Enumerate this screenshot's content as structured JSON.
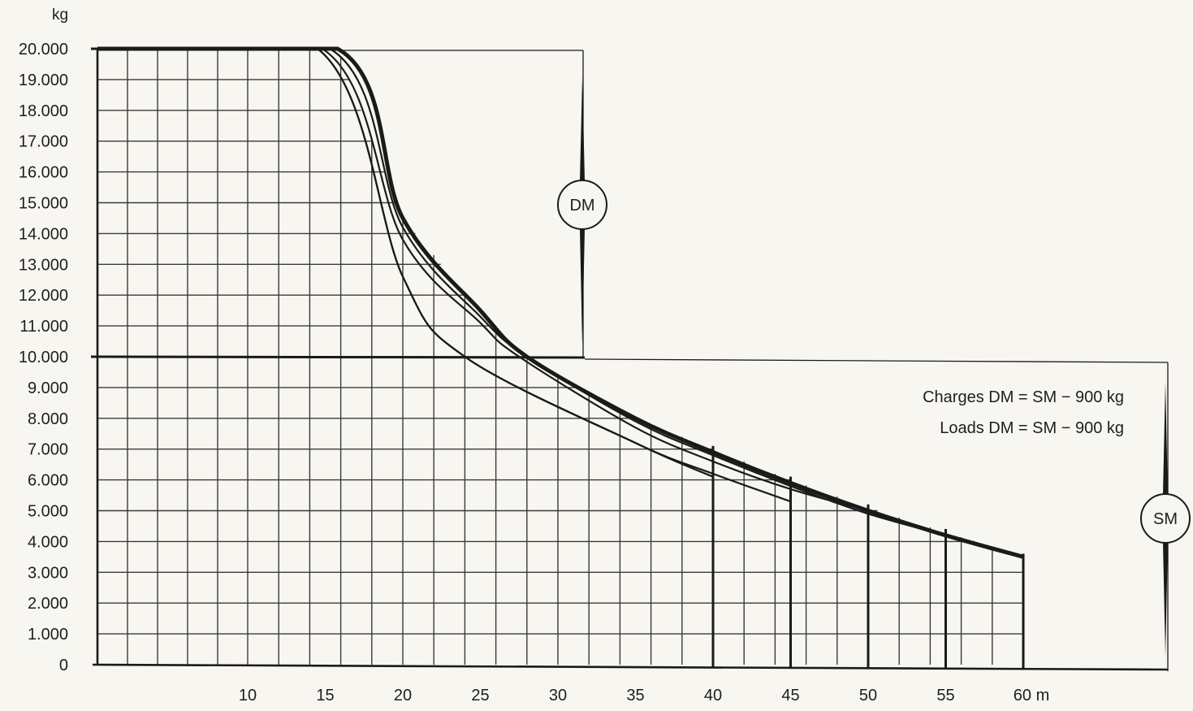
{
  "chart_data": {
    "type": "line",
    "title": "",
    "ylabel": "kg",
    "xlabel": "m",
    "xlim": [
      0,
      60
    ],
    "ylim": [
      0,
      20000
    ],
    "x_ticks": [
      {
        "value": 10,
        "label": "10"
      },
      {
        "value": 15,
        "label": "15"
      },
      {
        "value": 20,
        "label": "20"
      },
      {
        "value": 25,
        "label": "25"
      },
      {
        "value": 30,
        "label": "30"
      },
      {
        "value": 35,
        "label": "35"
      },
      {
        "value": 40,
        "label": "40"
      },
      {
        "value": 45,
        "label": "45"
      },
      {
        "value": 50,
        "label": "50"
      },
      {
        "value": 55,
        "label": "55"
      },
      {
        "value": 60,
        "label": "60 m"
      }
    ],
    "y_ticks": [
      {
        "value": 0,
        "label": "0"
      },
      {
        "value": 1000,
        "label": "1.000"
      },
      {
        "value": 2000,
        "label": "2.000"
      },
      {
        "value": 3000,
        "label": "3.000"
      },
      {
        "value": 4000,
        "label": "4.000"
      },
      {
        "value": 5000,
        "label": "5.000"
      },
      {
        "value": 6000,
        "label": "6.000"
      },
      {
        "value": 7000,
        "label": "7.000"
      },
      {
        "value": 8000,
        "label": "8.000"
      },
      {
        "value": 9000,
        "label": "9.000"
      },
      {
        "value": 10000,
        "label": "10.000"
      },
      {
        "value": 11000,
        "label": "11.000"
      },
      {
        "value": 12000,
        "label": "12.000"
      },
      {
        "value": 13000,
        "label": "13.000"
      },
      {
        "value": 14000,
        "label": "14.000"
      },
      {
        "value": 15000,
        "label": "15.000"
      },
      {
        "value": 16000,
        "label": "16.000"
      },
      {
        "value": 17000,
        "label": "17.000"
      },
      {
        "value": 18000,
        "label": "18.000"
      },
      {
        "value": 19000,
        "label": "19.000"
      },
      {
        "value": 20000,
        "label": "20.000"
      }
    ],
    "grid": true,
    "series": [
      {
        "jib_length": 60,
        "x": [
          0,
          15.8,
          20,
          25,
          28,
          35,
          40,
          45,
          50,
          55,
          60
        ],
        "y": [
          20000,
          20000,
          14500,
          11500,
          10000,
          8000,
          6900,
          5900,
          5000,
          4200,
          3500
        ]
      },
      {
        "jib_length": 55,
        "x": [
          0,
          15.3,
          20,
          25,
          28,
          35,
          40,
          45,
          50,
          55
        ],
        "y": [
          20000,
          20000,
          14200,
          11300,
          10000,
          7900,
          6800,
          5800,
          4900,
          4200
        ]
      },
      {
        "jib_length": 50,
        "x": [
          0,
          14.8,
          20,
          25,
          27.5,
          35,
          40,
          45,
          50
        ],
        "y": [
          20000,
          20000,
          13800,
          11100,
          10000,
          7700,
          6600,
          5700,
          5000
        ]
      },
      {
        "jib_length": 45,
        "x": [
          0,
          14.5,
          20,
          24,
          35,
          40,
          45
        ],
        "y": [
          20000,
          20000,
          12600,
          10000,
          7200,
          6200,
          5300
        ]
      },
      {
        "jib_length": 40,
        "x": [
          0,
          14.5,
          20,
          24,
          35,
          40
        ],
        "y": [
          20000,
          20000,
          12600,
          10000,
          7200,
          6100
        ]
      }
    ],
    "regions": [
      {
        "label": "DM",
        "y_range": [
          10000,
          20000
        ]
      },
      {
        "label": "SM",
        "y_range": [
          0,
          10000
        ]
      }
    ],
    "annotations": [
      "Charges DM = SM − 900 kg",
      "Loads DM = SM − 900 kg"
    ]
  }
}
